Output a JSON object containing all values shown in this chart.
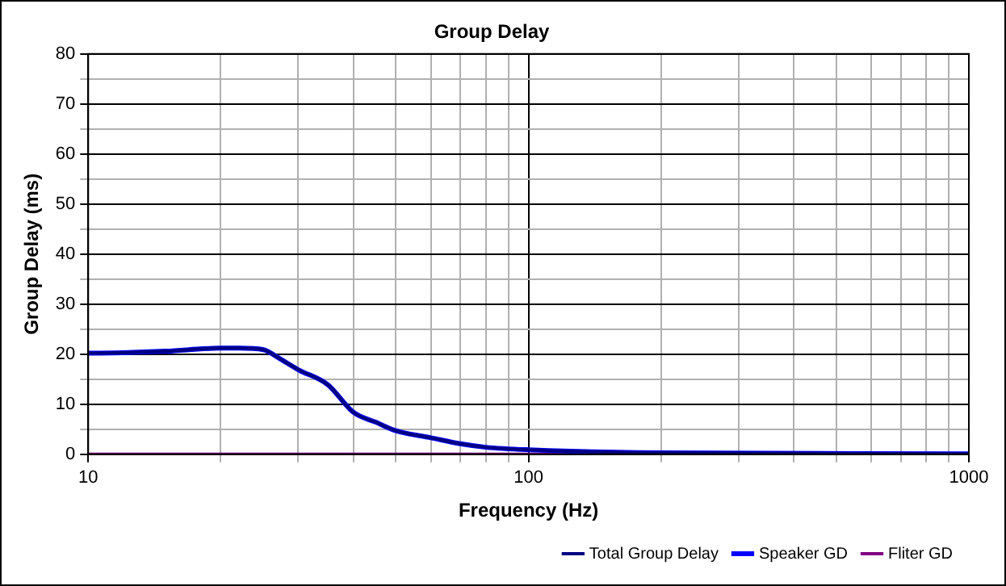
{
  "chart_data": {
    "type": "line",
    "title": "Group Delay",
    "xlabel": "Frequency (Hz)",
    "ylabel": "Group Delay (ms)",
    "log": "x",
    "xlim": [
      10,
      1000
    ],
    "ylim": [
      0,
      80
    ],
    "xticks": [
      10,
      {
        "value": 20,
        "label": null
      },
      {
        "value": 30,
        "label": null
      },
      {
        "value": 40,
        "label": null
      },
      {
        "value": 50,
        "label": null
      },
      {
        "value": 60,
        "label": null
      },
      {
        "value": 70,
        "label": null
      },
      {
        "value": 80,
        "label": null
      },
      {
        "value": 90,
        "label": null
      },
      100,
      {
        "value": 200,
        "label": null
      },
      {
        "value": 300,
        "label": null
      },
      {
        "value": 400,
        "label": null
      },
      {
        "value": 500,
        "label": null
      },
      {
        "value": 600,
        "label": null
      },
      {
        "value": 700,
        "label": null
      },
      {
        "value": 800,
        "label": null
      },
      {
        "value": 900,
        "label": null
      },
      1000
    ],
    "yticks": [
      0,
      {
        "value": 5,
        "label": null
      },
      10,
      {
        "value": 15,
        "label": null
      },
      20,
      {
        "value": 25,
        "label": null
      },
      30,
      {
        "value": 35,
        "label": null
      },
      40,
      {
        "value": 45,
        "label": null
      },
      50,
      {
        "value": 55,
        "label": null
      },
      60,
      {
        "value": 65,
        "label": null
      },
      70,
      {
        "value": 75,
        "label": null
      },
      80
    ],
    "grid": true,
    "legend": "bottom right",
    "marker": "none",
    "line_style": "solid",
    "x": [
      10,
      12,
      15,
      20,
      22,
      25,
      27,
      30,
      35,
      40,
      45,
      50,
      60,
      70,
      80,
      100,
      200,
      1000
    ],
    "series": [
      {
        "name": "Total Group Delay",
        "color": "#000080",
        "values": [
          20.2,
          20.3,
          20.6,
          21.2,
          21.2,
          20.9,
          19.3,
          16.9,
          13.9,
          8.4,
          6.4,
          4.7,
          3.3,
          2.1,
          1.4,
          0.9,
          0.3,
          0.1
        ]
      },
      {
        "name": "Speaker GD",
        "color": "#0000ff",
        "values": [
          20.2,
          20.3,
          20.6,
          21.2,
          21.2,
          20.9,
          19.3,
          16.9,
          13.9,
          8.4,
          6.4,
          4.7,
          3.3,
          2.1,
          1.4,
          0.9,
          0.3,
          0.1
        ]
      },
      {
        "name": "Fliter GD",
        "color": "#800080",
        "values": [
          0,
          0,
          0,
          0,
          0,
          0,
          0,
          0,
          0,
          0,
          0,
          0,
          0,
          0,
          0,
          0,
          0,
          0
        ]
      }
    ]
  }
}
